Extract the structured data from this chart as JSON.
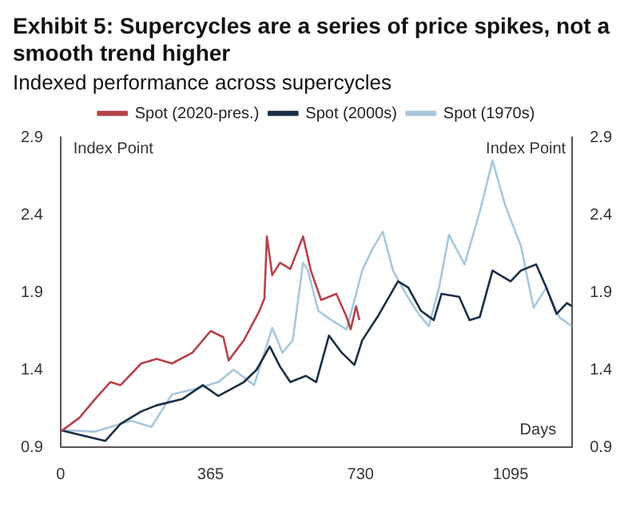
{
  "chart_data": {
    "type": "line",
    "title": "Exhibit 5: Supercycles are a series of price spikes, not a smooth trend higher",
    "subtitle": "Indexed performance across supercycles",
    "xlabel": "Days",
    "ylabel": "Index Point",
    "y2label": "Index Point",
    "xlim": [
      0,
      1245
    ],
    "xticks": [
      0,
      365,
      730,
      1095
    ],
    "ylim": [
      0.9,
      2.9
    ],
    "yticks": [
      0.9,
      1.4,
      1.9,
      2.4,
      2.9
    ],
    "y2lim": [
      0.9,
      2.9
    ],
    "y2ticks": [
      0.9,
      1.4,
      1.9,
      2.4,
      2.9
    ],
    "legend": "top",
    "grid": false,
    "marker": "none",
    "line_style": "solid",
    "series": [
      {
        "name": "Spot (2020-pres.)",
        "color": "#b5434a",
        "x": [
          0,
          46,
          84,
          121,
          146,
          196,
          234,
          271,
          321,
          365,
          396,
          409,
          446,
          484,
          496,
          502,
          515,
          534,
          559,
          590,
          609,
          634,
          671,
          696,
          706,
          719,
          727
        ],
        "values": [
          1.0,
          1.09,
          1.21,
          1.32,
          1.3,
          1.44,
          1.47,
          1.44,
          1.51,
          1.65,
          1.61,
          1.46,
          1.59,
          1.78,
          1.86,
          2.26,
          2.01,
          2.09,
          2.05,
          2.26,
          2.04,
          1.85,
          1.89,
          1.74,
          1.66,
          1.81,
          1.72
        ]
      },
      {
        "name": "Spot (2000s)",
        "color": "#1a2e45",
        "x": [
          0,
          46,
          109,
          146,
          196,
          234,
          296,
          346,
          384,
          446,
          477,
          509,
          534,
          559,
          597,
          622,
          653,
          684,
          715,
          734,
          771,
          821,
          846,
          877,
          908,
          927,
          970,
          995,
          1020,
          1051,
          1095,
          1120,
          1157,
          1182,
          1207,
          1232,
          1244
        ],
        "values": [
          1.01,
          0.98,
          0.94,
          1.05,
          1.13,
          1.17,
          1.21,
          1.3,
          1.23,
          1.32,
          1.4,
          1.55,
          1.42,
          1.32,
          1.36,
          1.32,
          1.62,
          1.51,
          1.43,
          1.59,
          1.74,
          1.97,
          1.93,
          1.78,
          1.72,
          1.89,
          1.87,
          1.72,
          1.74,
          2.04,
          1.97,
          2.04,
          2.08,
          1.93,
          1.76,
          1.83,
          1.81
        ]
      },
      {
        "name": "Spot (1970s)",
        "color": "#a8c8dc",
        "x": [
          0,
          84,
          171,
          221,
          271,
          334,
          384,
          421,
          471,
          515,
          540,
          565,
          590,
          602,
          627,
          659,
          696,
          734,
          759,
          784,
          809,
          840,
          871,
          896,
          921,
          945,
          983,
          1020,
          1051,
          1082,
          1120,
          1151,
          1182,
          1213,
          1244
        ],
        "values": [
          1.01,
          1.0,
          1.07,
          1.03,
          1.24,
          1.28,
          1.32,
          1.4,
          1.3,
          1.67,
          1.51,
          1.59,
          2.09,
          2.04,
          1.78,
          1.72,
          1.66,
          2.04,
          2.18,
          2.29,
          2.04,
          1.89,
          1.76,
          1.68,
          1.93,
          2.27,
          2.08,
          2.42,
          2.75,
          2.46,
          2.2,
          1.8,
          1.93,
          1.74,
          1.68
        ]
      }
    ]
  }
}
